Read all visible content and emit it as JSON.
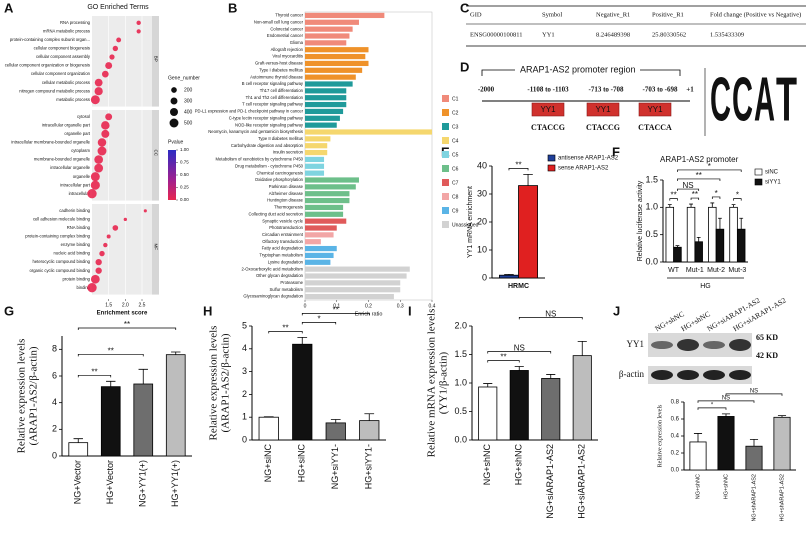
{
  "panel_labels": [
    "A",
    "B",
    "C",
    "D",
    "E",
    "F",
    "G",
    "H",
    "I",
    "J"
  ],
  "table": {
    "header": [
      "GID",
      "Symbol",
      "Negative_R1",
      "Positive_R1",
      "Fold change (Positive vs Negative)"
    ],
    "rows": [
      [
        "ENSG00000100811",
        "YY1",
        "8.246489398",
        "25.80330562",
        "1.535433309"
      ]
    ]
  },
  "diagram": {
    "title": "ARAP1-AS2 promoter region",
    "positions": [
      "-2000",
      "-1108 to -1103",
      "-713 to -708",
      "-703 to -698",
      "+1"
    ],
    "sites": [
      {
        "label": "YY1",
        "sequence": "CTACCG"
      },
      {
        "label": "YY1",
        "sequence": "CTACCG"
      },
      {
        "label": "YY1",
        "sequence": "CTACCA"
      }
    ],
    "logo": [
      "C",
      "C",
      "A",
      "T"
    ]
  },
  "blot": {
    "lanes": [
      "NG+shNC",
      "HG+shNC",
      "NG+siARAP1-AS2",
      "HG+siARAP1-AS2"
    ],
    "bands": [
      "YY1",
      "β-actin"
    ],
    "sizes": [
      "65 KD",
      "42 KD"
    ]
  },
  "chart_data": [
    {
      "type": "dot",
      "title": "GO Enriched Terms",
      "x_label": "Enrichment score",
      "xlim": [
        1,
        2.8
      ],
      "xticks": [
        1.5,
        {
          "value": 2,
          "label": "2.0"
        },
        2.5
      ],
      "color": "#e8264f",
      "groups": [
        {
          "name": "BP",
          "categories": [
            "RNA processing",
            "mRNA metabolic process",
            "protein-containing complex subunit organ...",
            "cellular component biogenesis",
            "cellular component assembly",
            "cellular component organization or biogenesis",
            "cellular component organization",
            "cellular metabolic process",
            "nitrogen compound metabolic process",
            "metabolic process"
          ],
          "values": [
            2.4,
            2.4,
            1.8,
            1.7,
            1.6,
            1.5,
            1.4,
            1.2,
            1.2,
            1.1
          ],
          "sizes": [
            120,
            110,
            150,
            180,
            170,
            300,
            280,
            380,
            420,
            500
          ]
        },
        {
          "name": "CC",
          "categories": [
            "cytosol",
            "intracellular organelle part",
            "organelle part",
            "intracellular membrane-bounded organelle",
            "cytoplasm",
            "membrane-bounded organelle",
            "intracellular organelle",
            "organelle",
            "intracellular part",
            "intracellular"
          ],
          "values": [
            1.5,
            1.4,
            1.4,
            1.3,
            1.3,
            1.2,
            1.2,
            1.1,
            1.1,
            1.0
          ],
          "sizes": [
            300,
            450,
            400,
            450,
            500,
            470,
            480,
            500,
            520,
            550
          ]
        },
        {
          "name": "MF",
          "categories": [
            "cadherin binding",
            "cell adhesion molecule binding",
            "RNA binding",
            "protein-containing complex binding",
            "enzyme binding",
            "nucleic acid binding",
            "heterocyclic compound binding",
            "organic cyclic compound binding",
            "protein binding",
            "binding"
          ],
          "values": [
            2.6,
            2.0,
            1.7,
            1.5,
            1.4,
            1.3,
            1.2,
            1.2,
            1.1,
            1.0
          ],
          "sizes": [
            60,
            70,
            200,
            100,
            120,
            180,
            250,
            250,
            480,
            550
          ]
        }
      ],
      "size_legend": {
        "title": "Gene_number",
        "values": [
          200,
          300,
          400,
          500
        ]
      },
      "color_legend": {
        "title": "Pvalue",
        "ticks": [
          {
            "value": 1,
            "label": "1.00"
          },
          0.75,
          {
            "value": 0.5,
            "label": "0.50"
          },
          0.25,
          {
            "value": 0,
            "label": "0.00"
          }
        ]
      }
    },
    {
      "type": "hbar",
      "x_label": "Enrich ratio",
      "xlim": [
        0,
        0.4
      ],
      "xticks": [
        0,
        0.1,
        0.2,
        0.3,
        0.4
      ],
      "groups": [
        {
          "name": "C1",
          "color": "#f08a7a",
          "categories": [
            "Thyroid cancer",
            "Non-small cell lung cancer",
            "Colorectal cancer",
            "Endometrial cancer",
            "Glioma"
          ],
          "values": [
            0.25,
            0.17,
            0.15,
            0.14,
            0.13
          ]
        },
        {
          "name": "C2",
          "color": "#ef922a",
          "categories": [
            "Allograft rejection",
            "Viral myocarditis",
            "Graft-versus-host disease",
            "Type I diabetes mellitus",
            "Autoimmune thyroid disease"
          ],
          "values": [
            0.2,
            0.19,
            0.2,
            0.18,
            0.16
          ]
        },
        {
          "name": "C3",
          "color": "#1f9a9a",
          "categories": [
            "B cell receptor signaling pathway",
            "Th17 cell differentiation",
            "Th1 and Th2 cell differentiation",
            "T cell receptor signaling pathway",
            "PD-L1 expression and PD-1 checkpoint pathway in cancer",
            "C-type lectin receptor signaling pathway",
            "NOD-like receptor signaling pathway"
          ],
          "values": [
            0.15,
            0.13,
            0.13,
            0.13,
            0.12,
            0.11,
            0.1
          ]
        },
        {
          "name": "C4",
          "color": "#f5d76e",
          "categories": [
            "Neomycin, kanamycin and gentamicin biosynthesis",
            "Type II diabetes mellitus",
            "Carbohydrate digestion and absorption",
            "Insulin secretion"
          ],
          "values": [
            0.4,
            0.08,
            0.07,
            0.07
          ]
        },
        {
          "name": "C5",
          "color": "#7fd4e0",
          "categories": [
            "Metabolism of xenobiotics by cytochrome P450",
            "Drug metabolism - cytochrome P450",
            "Chemical carcinogenesis"
          ],
          "values": [
            0.06,
            0.06,
            0.06
          ]
        },
        {
          "name": "C6",
          "color": "#6dbf8a",
          "categories": [
            "Oxidative phosphorylation",
            "Parkinson disease",
            "Alzheimer disease",
            "Huntington disease",
            "Thermogenesis",
            "Collecting duct acid secretion"
          ],
          "values": [
            0.17,
            0.16,
            0.14,
            0.14,
            0.12,
            0.12
          ]
        },
        {
          "name": "C7",
          "color": "#e05a5a",
          "categories": [
            "Synaptic vesicle cycle",
            "Phototransduction"
          ],
          "values": [
            0.13,
            0.1
          ]
        },
        {
          "name": "C8",
          "color": "#f2a6a6",
          "categories": [
            "Circadian entrainment",
            "Olfactory transduction"
          ],
          "values": [
            0.09,
            0.05
          ]
        },
        {
          "name": "C9",
          "color": "#5ab4e6",
          "categories": [
            "Fatty acid degradation",
            "Tryptophan metabolism",
            "Lysine degradation"
          ],
          "values": [
            0.1,
            0.09,
            0.08
          ]
        },
        {
          "name": "Unassigned",
          "color": "#d2d2d2",
          "categories": [
            "2-Oxocarboxylic acid metabolism",
            "Other glycan degradation",
            "Proteasome",
            "Sulfur metabolism",
            "Glycosaminoglycan degradation"
          ],
          "values": [
            0.33,
            0.32,
            0.3,
            0.3,
            0.28
          ]
        }
      ]
    },
    {
      "type": "bar",
      "y_label": [
        "YY1 mRNA enrichment"
      ],
      "categories": [
        "HRMC"
      ],
      "ylim": [
        0,
        40
      ],
      "yticks": [
        0,
        10,
        20,
        30,
        40
      ],
      "series": [
        {
          "name": "antisense ARAP1-AS2",
          "color": "#1f3f99",
          "values": [
            1
          ],
          "errors": [
            0.3
          ]
        },
        {
          "name": "sense ARAP1-AS2",
          "color": "#e02020",
          "values": [
            33
          ],
          "errors": [
            4
          ]
        }
      ],
      "annotations": [
        "**"
      ]
    },
    {
      "type": "bar",
      "title": "ARAP1-AS2 promoter",
      "y_label": [
        "Relative luciferase activity"
      ],
      "categories": [
        "WT",
        "Mut-1",
        "Mut-2",
        "Mut-3"
      ],
      "group_label": "HG",
      "ylim": [
        0,
        1.5
      ],
      "yticks": [
        {
          "value": 0,
          "label": "0.0"
        },
        0.5,
        {
          "value": 1,
          "label": "1.0"
        },
        1.5
      ],
      "series": [
        {
          "name": "siNC",
          "color": "#ffffff",
          "values": [
            1,
            1,
            1,
            1
          ],
          "errors": [
            0.05,
            0.06,
            0.08,
            0.05
          ]
        },
        {
          "name": "siYY1",
          "color": "#111111",
          "values": [
            0.27,
            0.37,
            0.6,
            0.6
          ],
          "errors": [
            0.03,
            0.08,
            0.2,
            0.2
          ]
        }
      ],
      "annotations": [
        "**",
        "**",
        "*",
        "*",
        "NS",
        "**",
        "*"
      ]
    },
    {
      "type": "bar",
      "y_label": [
        "Relative expression levels",
        "(ARAP1-AS2/β-actin)"
      ],
      "categories": [
        "NG+Vector",
        "HG+Vector",
        "NG+YY1(+)",
        "HG+YY1(+)"
      ],
      "values": [
        1.0,
        5.2,
        5.4,
        7.6
      ],
      "errors": [
        0.3,
        0.4,
        1.1,
        0.2
      ],
      "colors": [
        "#ffffff",
        "#111111",
        "#6e6e6e",
        "#bdbdbd"
      ],
      "ylim": [
        0,
        9
      ],
      "yticks": [
        0,
        2,
        4,
        6,
        8
      ],
      "annotations": [
        "**",
        "**",
        "**"
      ]
    },
    {
      "type": "bar",
      "y_label": [
        "Relative expression levels",
        "(ARAP1-AS2/β-actin)"
      ],
      "categories": [
        "NG+siNC",
        "HG+siNC",
        "NG+siYY1-",
        "HG+siYY1-"
      ],
      "values": [
        1,
        4.2,
        0.75,
        0.85
      ],
      "errors": [
        0.02,
        0.3,
        0.15,
        0.3
      ],
      "colors": [
        "#ffffff",
        "#111111",
        "#6e6e6e",
        "#bdbdbd"
      ],
      "ylim": [
        0,
        5
      ],
      "yticks": [
        0,
        1,
        2,
        3,
        4,
        5
      ],
      "annotations": [
        "**",
        "*",
        "**"
      ]
    },
    {
      "type": "bar",
      "y_label": [
        "Relative mRNA expression levels",
        "(YY1/β-actin)"
      ],
      "categories": [
        "NG+shNC",
        "HG+shNC",
        "NG+siARAP1-AS2",
        "HG+siARAP1-AS2"
      ],
      "values": [
        0.93,
        1.22,
        1.08,
        1.48
      ],
      "errors": [
        0.06,
        0.07,
        0.07,
        0.25
      ],
      "colors": [
        "#ffffff",
        "#111111",
        "#6e6e6e",
        "#bdbdbd"
      ],
      "ylim": [
        0,
        2
      ],
      "yticks": [
        {
          "value": 0,
          "label": "0.0"
        },
        0.5,
        {
          "value": 1,
          "label": "1.0"
        },
        1.5,
        {
          "value": 2,
          "label": "2.0"
        }
      ],
      "annotations": [
        "**",
        "NS",
        "NS"
      ]
    },
    {
      "type": "bar",
      "y_label": [
        "Relative expression levels"
      ],
      "categories": [
        "NG+shNC",
        "HG+shNC",
        "NG+shARAP1-AS2",
        "HG+shARAP1-AS2"
      ],
      "values": [
        0.33,
        0.63,
        0.28,
        0.62
      ],
      "errors": [
        0.1,
        0.03,
        0.08,
        0.02
      ],
      "colors": [
        "#ffffff",
        "#111111",
        "#6e6e6e",
        "#bdbdbd"
      ],
      "ylim": [
        0,
        0.8
      ],
      "yticks": [
        {
          "value": 0,
          "label": "0.0"
        },
        0.2,
        0.4,
        0.6,
        0.8
      ],
      "annotations": [
        "*",
        "NS",
        "NS"
      ]
    }
  ]
}
